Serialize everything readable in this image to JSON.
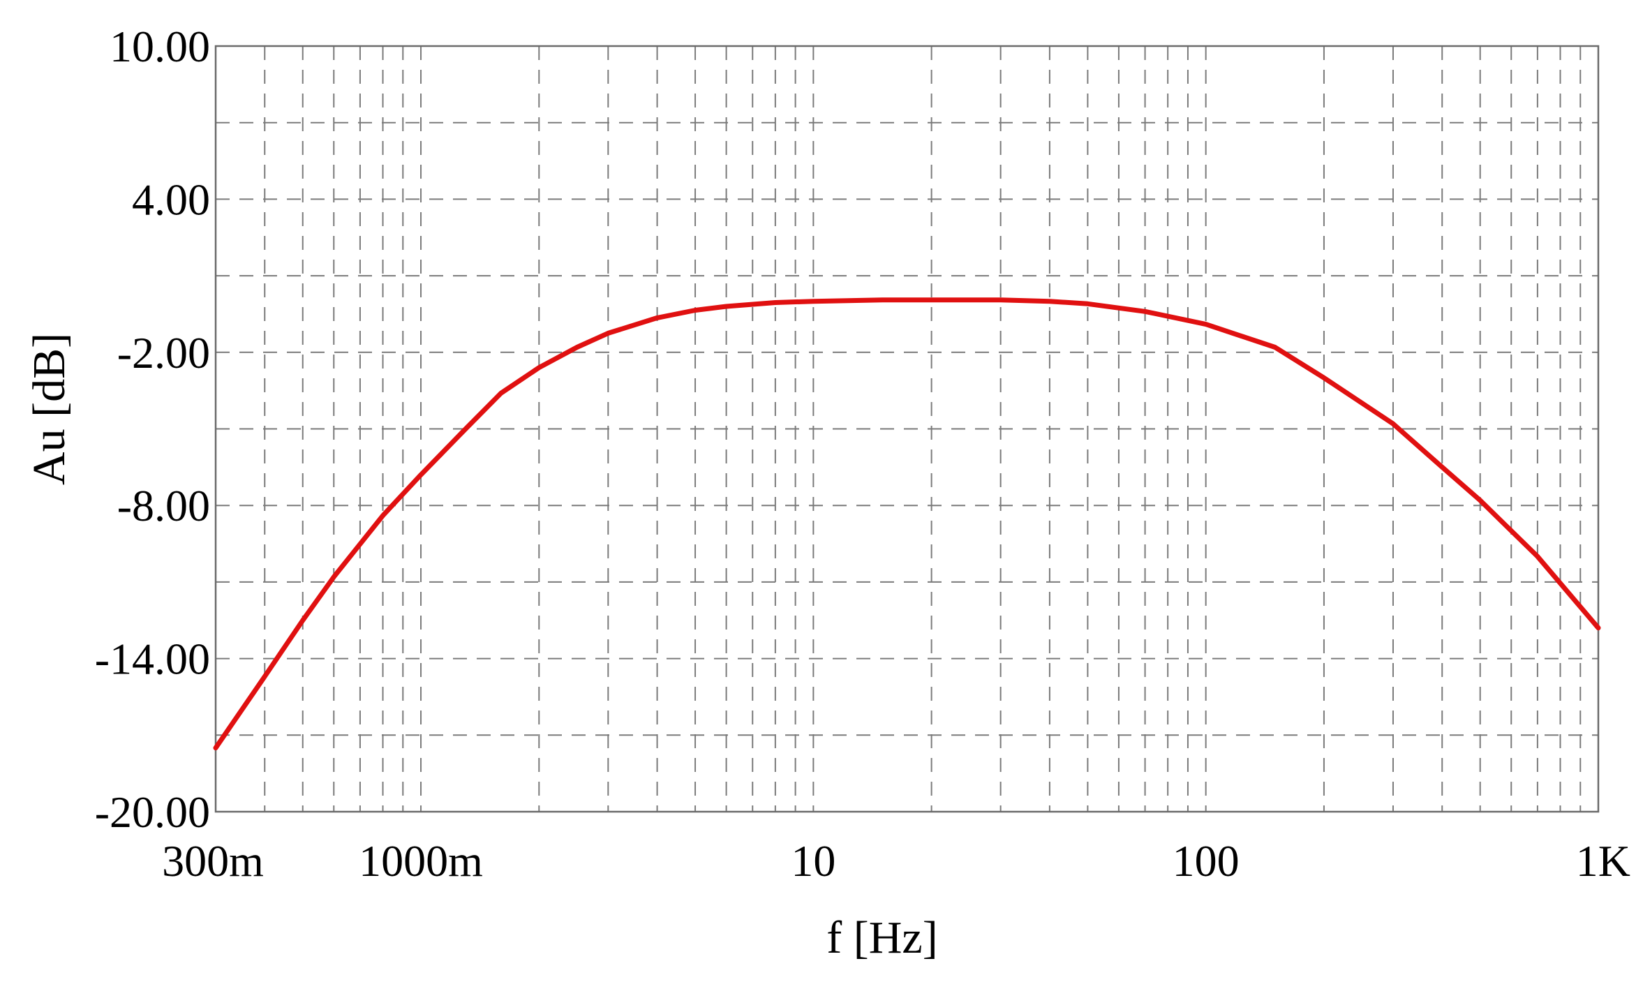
{
  "chart_data": {
    "type": "line",
    "title": "",
    "xlabel": "f [Hz]",
    "ylabel": "Au [dB]",
    "x_scale": "log",
    "xlim": [
      0.3,
      1000
    ],
    "ylim": [
      -20,
      10
    ],
    "x_ticks": [
      {
        "value": 0.3,
        "label": "300m"
      },
      {
        "value": 1,
        "label": "1000m"
      },
      {
        "value": 10,
        "label": "10"
      },
      {
        "value": 100,
        "label": "100"
      },
      {
        "value": 1000,
        "label": "1K"
      }
    ],
    "y_ticks": [
      {
        "value": 10,
        "label": "10.00"
      },
      {
        "value": 4,
        "label": "4.00"
      },
      {
        "value": -2,
        "label": "-2.00"
      },
      {
        "value": -8,
        "label": "-8.00"
      },
      {
        "value": -14,
        "label": "-14.00"
      },
      {
        "value": -20,
        "label": "-20.00"
      }
    ],
    "y_minor_grid": [
      7,
      1,
      -5,
      -11,
      -17
    ],
    "grid": true,
    "series": [
      {
        "color": "#e01010",
        "x": [
          0.3,
          0.4,
          0.5,
          0.6,
          0.8,
          1.0,
          1.3,
          1.6,
          2.0,
          2.5,
          3.0,
          4.0,
          5.0,
          6.0,
          8.0,
          10,
          15,
          20,
          30,
          40,
          50,
          70,
          100,
          150,
          200,
          300,
          400,
          500,
          700,
          1000
        ],
        "y": [
          -17.5,
          -14.7,
          -12.5,
          -10.8,
          -8.4,
          -6.8,
          -5.0,
          -3.6,
          -2.6,
          -1.8,
          -1.25,
          -0.65,
          -0.35,
          -0.2,
          -0.05,
          0.0,
          0.05,
          0.05,
          0.05,
          0.0,
          -0.1,
          -0.4,
          -0.9,
          -1.8,
          -3.0,
          -4.8,
          -6.5,
          -7.8,
          -10.0,
          -12.8
        ]
      }
    ]
  }
}
